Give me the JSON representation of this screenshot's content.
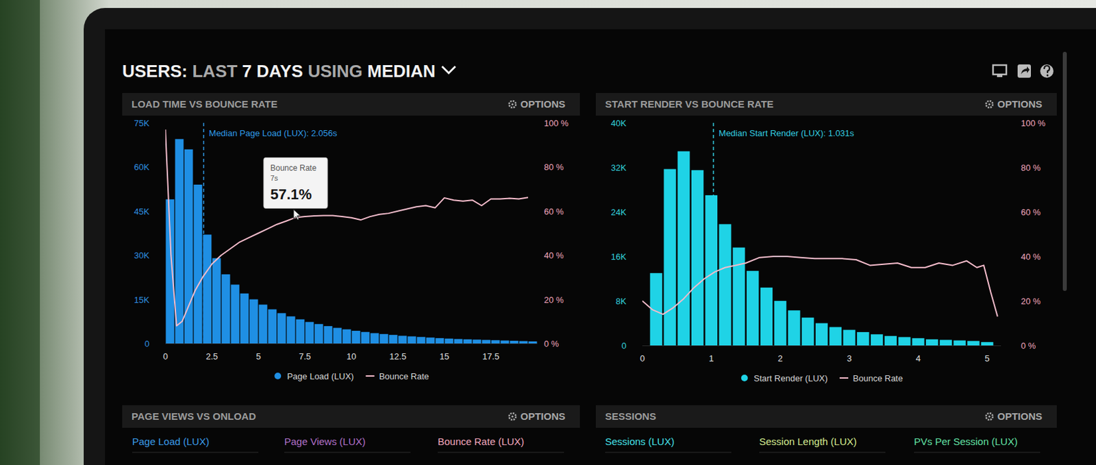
{
  "header": {
    "title_parts": [
      "USERS:",
      "LAST",
      "7 DAYS",
      "USING",
      "MEDIAN"
    ]
  },
  "chart_data": [
    {
      "type": "histogram",
      "title": "LOAD TIME VS BOUNCE RATE",
      "options": "OPTIONS",
      "bins": [
        0,
        0.5,
        1,
        1.5,
        2,
        2.5,
        3,
        3.5,
        4,
        4.5,
        5,
        5.5,
        6,
        6.5,
        7,
        7.5,
        8,
        8.5,
        9,
        9.5,
        10,
        10.5,
        11,
        11.5,
        12,
        12.5,
        13,
        13.5,
        14,
        14.5,
        15,
        15.5,
        16,
        16.5,
        17,
        17.5,
        18,
        18.5,
        19,
        19.5,
        20
      ],
      "series": [
        {
          "name": "Page Load (LUX)",
          "type": "bar",
          "color": "#1f8fe4",
          "values": [
            49000,
            69500,
            66000,
            54000,
            37000,
            29000,
            23500,
            20000,
            17000,
            15000,
            13200,
            11600,
            10300,
            9200,
            8200,
            7300,
            6600,
            5900,
            5300,
            4800,
            4300,
            3900,
            3500,
            3200,
            2900,
            2600,
            2400,
            2200,
            2000,
            1800,
            1650,
            1500,
            1400,
            1300,
            1200,
            1100,
            1000,
            900,
            800,
            700
          ]
        },
        {
          "name": "Bounce Rate",
          "type": "line",
          "color": "#f4bccb",
          "axis": "y2",
          "x": [
            0,
            0.3,
            0.6,
            0.9,
            1.2,
            1.6,
            2.0,
            2.5,
            3,
            3.5,
            4,
            4.5,
            5,
            5.5,
            6,
            6.5,
            7,
            7.5,
            8,
            8.5,
            9,
            9.5,
            10,
            10.5,
            11,
            11.5,
            12,
            12.5,
            13,
            13.5,
            14,
            14.5,
            15,
            15.5,
            16,
            16.5,
            17,
            17.5,
            18,
            18.5,
            19,
            19.5
          ],
          "values": [
            97,
            40,
            8,
            10,
            16,
            24,
            30,
            36,
            40,
            43,
            46,
            48,
            50,
            52,
            54,
            55.5,
            57.1,
            57.5,
            57.8,
            58,
            58,
            57.5,
            57,
            56,
            57.5,
            58.5,
            59,
            60,
            61,
            62,
            62.5,
            61.5,
            66,
            65,
            64.5,
            65,
            62.5,
            65.5,
            65.5,
            65.8,
            65.5,
            66.2
          ]
        }
      ],
      "xlim": [
        0,
        20
      ],
      "xticks": [
        0,
        2.5,
        5,
        7.5,
        10,
        12.5,
        15,
        17.5
      ],
      "ylim": [
        0,
        75000
      ],
      "yticks": [
        0,
        {
          "value": 15000,
          "label": "15K"
        },
        {
          "value": 30000,
          "label": "30K"
        },
        {
          "value": 45000,
          "label": "45K"
        },
        {
          "value": 60000,
          "label": "60K"
        },
        {
          "value": 75000,
          "label": "75K"
        }
      ],
      "y2lim": [
        0,
        100
      ],
      "y2ticks": [
        {
          "value": 0,
          "label": "0 %"
        },
        {
          "value": 20,
          "label": "20 %"
        },
        {
          "value": 40,
          "label": "40 %"
        },
        {
          "value": 60,
          "label": "60 %"
        },
        {
          "value": 80,
          "label": "80 %"
        },
        {
          "value": 100,
          "label": "100 %"
        }
      ],
      "annotations": [
        {
          "x": 2.056,
          "label": "Median Page Load (LUX): 2.056s"
        }
      ],
      "tooltip": {
        "title": "Bounce Rate",
        "x": 7,
        "x_label": "7s",
        "value": 57.1,
        "value_label": "57.1%"
      },
      "legend": "bottom"
    },
    {
      "type": "histogram",
      "title": "START RENDER VS BOUNCE RATE",
      "options": "OPTIONS",
      "bins": [
        0.1,
        0.3,
        0.5,
        0.7,
        0.9,
        1.1,
        1.3,
        1.5,
        1.7,
        1.9,
        2.1,
        2.3,
        2.5,
        2.7,
        2.9,
        3.1,
        3.3,
        3.5,
        3.7,
        3.9,
        4.1,
        4.3,
        4.5,
        4.7,
        4.9,
        5.1
      ],
      "series": [
        {
          "name": "Start Render (LUX)",
          "type": "bar",
          "color": "#1fd3e6",
          "values": [
            13000,
            31700,
            34900,
            31500,
            27000,
            21800,
            17600,
            13400,
            10400,
            8000,
            6300,
            5000,
            4000,
            3300,
            2800,
            2400,
            2000,
            1700,
            1500,
            1300,
            1100,
            1000,
            900,
            800,
            600
          ]
        },
        {
          "name": "Bounce Rate",
          "type": "line",
          "color": "#f4bccb",
          "axis": "y2",
          "x": [
            0,
            0.15,
            0.3,
            0.45,
            0.6,
            0.75,
            0.9,
            1.05,
            1.2,
            1.35,
            1.5,
            1.7,
            1.9,
            2.1,
            2.3,
            2.5,
            2.7,
            2.9,
            3.1,
            3.3,
            3.5,
            3.7,
            3.9,
            4.1,
            4.3,
            4.5,
            4.7,
            4.85,
            4.95,
            5.05,
            5.15
          ],
          "values": [
            20,
            16,
            14,
            17,
            21,
            26,
            30,
            33,
            35,
            36,
            37,
            39.5,
            40,
            40,
            39.5,
            39,
            39,
            39,
            38.5,
            36,
            36.5,
            37,
            35,
            35,
            37,
            36,
            38,
            35,
            36,
            24,
            13
          ]
        }
      ],
      "xlim": [
        0,
        5.2
      ],
      "xticks": [
        0,
        1,
        2,
        3,
        4,
        5
      ],
      "ylim": [
        0,
        40000
      ],
      "yticks": [
        0,
        {
          "value": 8000,
          "label": "8K"
        },
        {
          "value": 16000,
          "label": "16K"
        },
        {
          "value": 24000,
          "label": "24K"
        },
        {
          "value": 32000,
          "label": "32K"
        },
        {
          "value": 40000,
          "label": "40K"
        }
      ],
      "y2lim": [
        0,
        100
      ],
      "y2ticks": [
        {
          "value": 0,
          "label": "0 %"
        },
        {
          "value": 20,
          "label": "20 %"
        },
        {
          "value": 40,
          "label": "40 %"
        },
        {
          "value": 60,
          "label": "60 %"
        },
        {
          "value": 80,
          "label": "80 %"
        },
        {
          "value": 100,
          "label": "100 %"
        }
      ],
      "annotations": [
        {
          "x": 1.031,
          "label": "Median Start Render (LUX): 1.031s"
        }
      ],
      "legend": "bottom"
    }
  ],
  "panels": [
    {
      "title": "PAGE VIEWS VS ONLOAD",
      "options": "OPTIONS",
      "metrics": [
        "Page Load (LUX)",
        "Page Views (LUX)",
        "Bounce Rate (LUX)"
      ]
    },
    {
      "title": "SESSIONS",
      "options": "OPTIONS",
      "metrics": [
        "Sessions (LUX)",
        "Session Length (LUX)",
        "PVs Per Session (LUX)"
      ]
    }
  ]
}
